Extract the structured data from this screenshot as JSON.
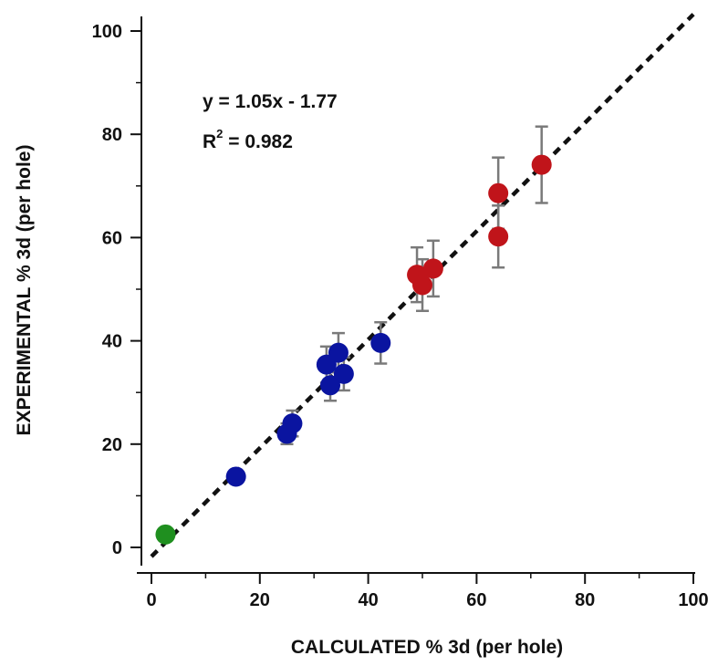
{
  "chart_data": {
    "type": "scatter",
    "title": "",
    "xlabel": "CALCULATED % 3d (per hole)",
    "ylabel": "EXPERIMENTAL % 3d (per hole)",
    "xlim": [
      0,
      100
    ],
    "ylim": [
      0,
      100
    ],
    "x_ticks": [
      0,
      20,
      40,
      60,
      80,
      100
    ],
    "y_ticks": [
      0,
      20,
      40,
      60,
      80,
      100
    ],
    "grid": false,
    "annotations": {
      "equation": "y = 1.05x - 1.77",
      "r2_base": "R",
      "r2_sup": "2",
      "r2_rest": " = 0.982"
    },
    "fit_line": {
      "slope": 1.05,
      "intercept": -1.77,
      "style": "dashed",
      "color": "#111111"
    },
    "error_bar_color": "#7a7a7a",
    "series": [
      {
        "color": "#1f8f1f",
        "points": [
          {
            "x": 2.6,
            "y": 2.5
          }
        ]
      },
      {
        "color": "#0a14a0",
        "points": [
          {
            "x": 15.6,
            "y": 13.7
          },
          {
            "x": 25.0,
            "y": 22.0,
            "err": 2.0
          },
          {
            "x": 26.0,
            "y": 24.0,
            "err": 2.5
          },
          {
            "x": 32.3,
            "y": 35.4,
            "err": 3.5
          },
          {
            "x": 33.0,
            "y": 31.4,
            "err": 3.0
          },
          {
            "x": 34.5,
            "y": 37.7,
            "err": 3.8
          },
          {
            "x": 35.5,
            "y": 33.6,
            "err": 3.2
          },
          {
            "x": 42.3,
            "y": 39.6,
            "err": 4.0
          }
        ]
      },
      {
        "color": "#c0141a",
        "points": [
          {
            "x": 49.0,
            "y": 52.8,
            "err": 5.3
          },
          {
            "x": 50.0,
            "y": 50.8,
            "err": 5.0
          },
          {
            "x": 52.0,
            "y": 54.0,
            "err": 5.4
          },
          {
            "x": 64.0,
            "y": 68.6,
            "err": 6.9
          },
          {
            "x": 64.0,
            "y": 60.2,
            "err": 6.0
          },
          {
            "x": 72.0,
            "y": 74.1,
            "err": 7.4
          }
        ]
      }
    ]
  }
}
